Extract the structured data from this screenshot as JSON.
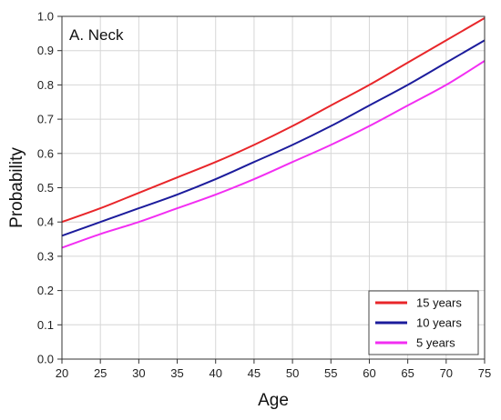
{
  "chart_data": {
    "type": "line",
    "panel_label": "A. Neck",
    "xlabel": "Age",
    "ylabel": "Probability",
    "xlim": [
      20,
      75
    ],
    "ylim": [
      0.0,
      1.0
    ],
    "x_ticks": [
      "20",
      "25",
      "30",
      "35",
      "40",
      "45",
      "50",
      "55",
      "60",
      "65",
      "70",
      "75"
    ],
    "y_ticks": [
      "0.0",
      "0.1",
      "0.2",
      "0.3",
      "0.4",
      "0.5",
      "0.6",
      "0.7",
      "0.8",
      "0.9",
      "1.0"
    ],
    "grid": true,
    "legend_position": "bottom-right",
    "x": [
      20,
      25,
      30,
      35,
      40,
      45,
      50,
      55,
      60,
      65,
      70,
      75
    ],
    "series": [
      {
        "name": "15 years",
        "color": "#e8262a",
        "values": [
          0.4,
          0.44,
          0.485,
          0.53,
          0.575,
          0.625,
          0.68,
          0.74,
          0.8,
          0.865,
          0.93,
          0.995
        ]
      },
      {
        "name": "10 years",
        "color": "#1c1c9c",
        "values": [
          0.36,
          0.4,
          0.44,
          0.48,
          0.525,
          0.575,
          0.625,
          0.68,
          0.74,
          0.8,
          0.865,
          0.93
        ]
      },
      {
        "name": "5 years",
        "color": "#f22ef2",
        "values": [
          0.325,
          0.365,
          0.4,
          0.44,
          0.48,
          0.525,
          0.575,
          0.625,
          0.68,
          0.74,
          0.8,
          0.87
        ]
      }
    ]
  }
}
